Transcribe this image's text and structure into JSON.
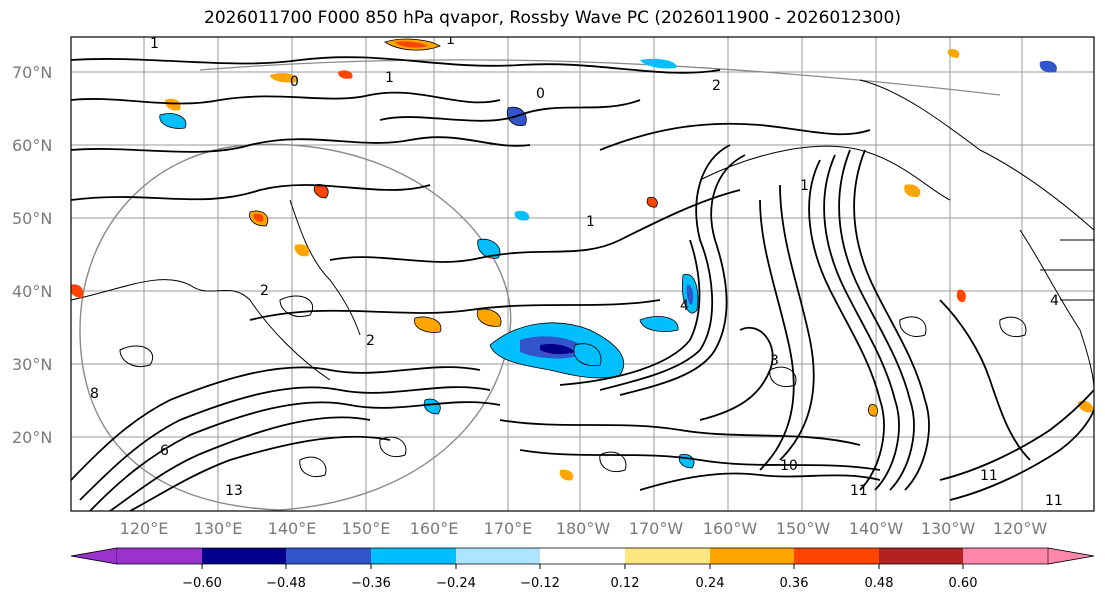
{
  "title": "2026011700 F000 850 hPa qvapor, Rossby Wave PC (2026011900 - 2026012300)",
  "lat_labels": [
    "70°N",
    "60°N",
    "50°N",
    "40°N",
    "30°N",
    "20°N"
  ],
  "lon_labels": [
    "120°E",
    "130°E",
    "140°E",
    "150°E",
    "160°E",
    "170°E",
    "180°W",
    "170°W",
    "160°W",
    "150°W",
    "140°W",
    "130°W",
    "120°W"
  ],
  "colorbar": {
    "colors": [
      "#9933cc",
      "#00008b",
      "#3355cc",
      "#00bfff",
      "#aee4ff",
      "#ffffff",
      "#ffe680",
      "#ffa500",
      "#ff4500",
      "#b22222",
      "#ff88aa"
    ],
    "tick_labels": [
      "−0.60",
      "−0.48",
      "−0.36",
      "−0.24",
      "−0.12",
      "0.12",
      "0.24",
      "0.36",
      "0.48",
      "0.60"
    ]
  },
  "contour_labels": [
    "1",
    "1",
    "1",
    "2",
    "0",
    "0",
    "2",
    "2",
    "4",
    "1",
    "4",
    "3",
    "6",
    "8",
    "10",
    "11",
    "11",
    "11",
    "13",
    "1"
  ]
}
